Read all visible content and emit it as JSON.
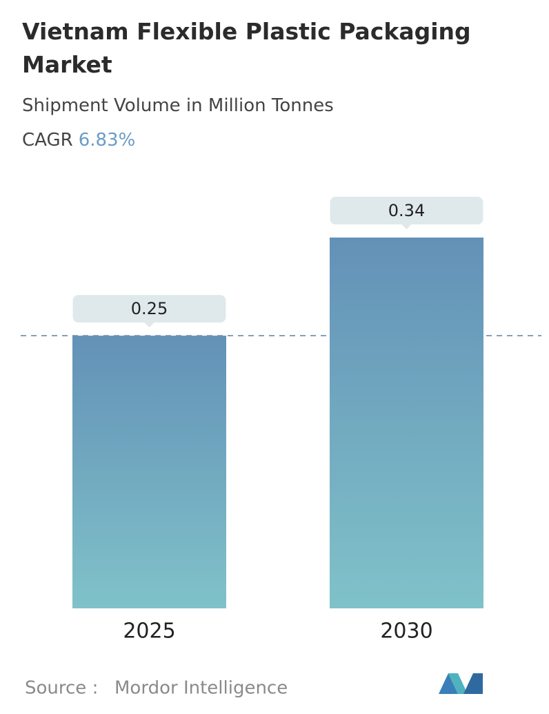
{
  "chart_data": {
    "type": "bar",
    "title": "Vietnam Flexible Plastic Packaging Market",
    "subtitle": "Shipment Volume in Million Tonnes",
    "cagr_label": "CAGR",
    "cagr_value": "6.83%",
    "categories": [
      "2025",
      "2030"
    ],
    "values": [
      0.25,
      0.34
    ],
    "color": [
      "#6391b7",
      "#80c2c9"
    ],
    "source_label": "Source :",
    "source": "Mordor Intelligence"
  }
}
